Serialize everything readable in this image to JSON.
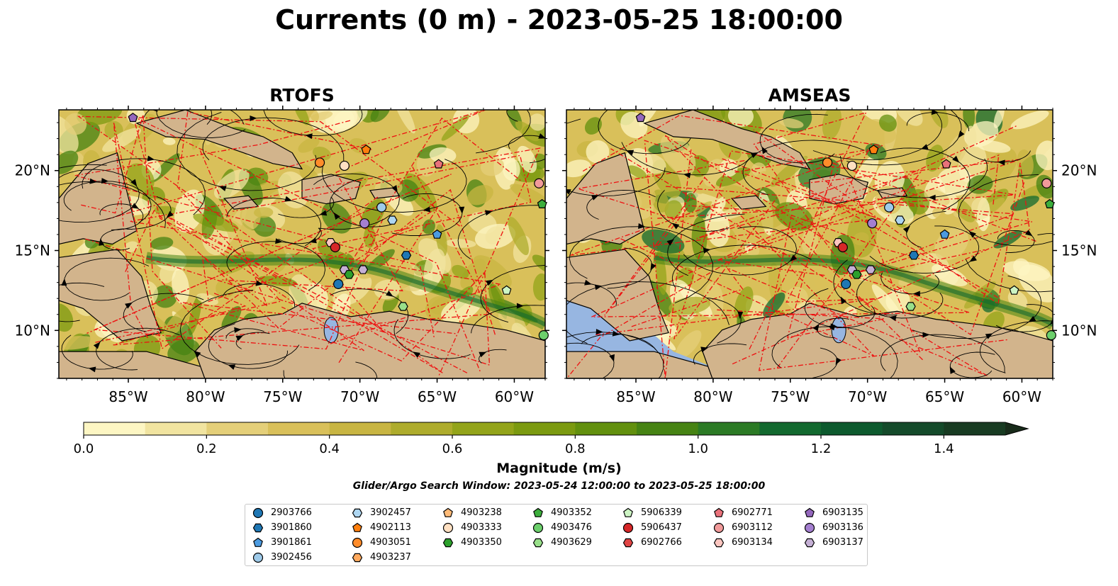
{
  "title": "Currents (0 m) - 2023-05-25 18:00:00",
  "panels": [
    {
      "title": "RTOFS"
    },
    {
      "title": "AMSEAS"
    }
  ],
  "axes": {
    "x_ticks": [
      "85°W",
      "80°W",
      "75°W",
      "70°W",
      "65°W",
      "60°W"
    ],
    "y_ticks": [
      "20°N",
      "15°N",
      "10°N"
    ],
    "x_values": [
      -85,
      -80,
      -75,
      -70,
      -65,
      -60
    ],
    "y_values": [
      20,
      15,
      10
    ],
    "xlim": [
      -89.5,
      -58.0
    ],
    "ylim": [
      7.0,
      23.8
    ]
  },
  "colorbar": {
    "label": "Magnitude (m/s)",
    "ticks": [
      "0.0",
      "0.2",
      "0.4",
      "0.6",
      "0.8",
      "1.0",
      "1.2",
      "1.4"
    ],
    "tick_values": [
      0.0,
      0.2,
      0.4,
      0.6,
      0.8,
      1.0,
      1.2,
      1.4
    ],
    "range": [
      0.0,
      1.5
    ],
    "extend": "max",
    "colors": [
      "#fdf6c3",
      "#f1e4a0",
      "#e4cf79",
      "#d9c05a",
      "#c8b542",
      "#aeac2c",
      "#93a41a",
      "#7b9a10",
      "#62900e",
      "#468313",
      "#2b7a25",
      "#12692f",
      "#0d5a2e",
      "#144a2a",
      "#183b22",
      "#182b1a"
    ]
  },
  "search_window": "Glider/Argo Search Window: 2023-05-24 12:00:00 to 2023-05-25 18:00:00",
  "legend": {
    "entries": [
      {
        "id": "2903766",
        "marker": "circle",
        "color": "#1f77b4"
      },
      {
        "id": "3901860",
        "marker": "hexagon",
        "color": "#1f77b4"
      },
      {
        "id": "3901861",
        "marker": "pentagon",
        "color": "#4c9be0"
      },
      {
        "id": "3902456",
        "marker": "circle",
        "color": "#9ecae9"
      },
      {
        "id": "3902457",
        "marker": "hexagon",
        "color": "#aed6f1"
      },
      {
        "id": "4902113",
        "marker": "pentagon",
        "color": "#ff7f0e"
      },
      {
        "id": "4903051",
        "marker": "circle",
        "color": "#ff8c2a"
      },
      {
        "id": "4903237",
        "marker": "hexagon",
        "color": "#ffa95e"
      },
      {
        "id": "4903238",
        "marker": "pentagon",
        "color": "#ffbb78"
      },
      {
        "id": "4903333",
        "marker": "circle",
        "color": "#ffe0c2"
      },
      {
        "id": "4903350",
        "marker": "hexagon",
        "color": "#2ca02c"
      },
      {
        "id": "4903352",
        "marker": "pentagon",
        "color": "#3cae3c"
      },
      {
        "id": "4903476",
        "marker": "circle",
        "color": "#6ccf6c"
      },
      {
        "id": "4903629",
        "marker": "hexagon",
        "color": "#98df8a"
      },
      {
        "id": "5906339",
        "marker": "pentagon",
        "color": "#cdf5c4"
      },
      {
        "id": "5906437",
        "marker": "circle",
        "color": "#d62728"
      },
      {
        "id": "6902766",
        "marker": "hexagon",
        "color": "#e04444"
      },
      {
        "id": "6902771",
        "marker": "pentagon",
        "color": "#e9717a"
      },
      {
        "id": "6903112",
        "marker": "circle",
        "color": "#f19a9a"
      },
      {
        "id": "6903134",
        "marker": "hexagon",
        "color": "#fcc6c0"
      },
      {
        "id": "6903135",
        "marker": "pentagon",
        "color": "#9467bd"
      },
      {
        "id": "6903136",
        "marker": "circle",
        "color": "#a47fd0"
      },
      {
        "id": "6903137",
        "marker": "hexagon",
        "color": "#c5b0d5"
      }
    ]
  },
  "chart_data": {
    "type": "heatmap",
    "title": "Currents (0 m) - 2023-05-25 18:00:00",
    "subplots": [
      "RTOFS",
      "AMSEAS"
    ],
    "variable": "Magnitude (m/s)",
    "xlim": [
      -89.5,
      -58.0
    ],
    "ylim": [
      7.0,
      23.8
    ],
    "floats": [
      {
        "id": "6903135",
        "lon": -84.7,
        "lat": 23.3
      },
      {
        "id": "4903051",
        "lon": -72.6,
        "lat": 20.5
      },
      {
        "id": "4903333",
        "lon": -71.0,
        "lat": 20.3
      },
      {
        "id": "4902113",
        "lon": -69.6,
        "lat": 21.3
      },
      {
        "id": "6902771",
        "lon": -64.9,
        "lat": 20.4
      },
      {
        "id": "6903112",
        "lon": -58.4,
        "lat": 19.2
      },
      {
        "id": "4903352",
        "lon": -58.2,
        "lat": 17.9
      },
      {
        "id": "3902456",
        "lon": -68.6,
        "lat": 17.7
      },
      {
        "id": "3902457",
        "lon": -67.9,
        "lat": 16.9
      },
      {
        "id": "6903136",
        "lon": -69.7,
        "lat": 16.7
      },
      {
        "id": "3901861",
        "lon": -65.0,
        "lat": 16.0
      },
      {
        "id": "6903134",
        "lon": -71.9,
        "lat": 15.5
      },
      {
        "id": "5906437",
        "lon": -71.6,
        "lat": 15.2
      },
      {
        "id": "3901860",
        "lon": -67.0,
        "lat": 14.7
      },
      {
        "id": "6903137",
        "lon": -71.0,
        "lat": 13.8
      },
      {
        "id": "6903137",
        "lon": -69.8,
        "lat": 13.8
      },
      {
        "id": "4903350",
        "lon": -70.7,
        "lat": 13.5
      },
      {
        "id": "2903766",
        "lon": -71.4,
        "lat": 12.9
      },
      {
        "id": "5906339",
        "lon": -60.5,
        "lat": 12.5
      },
      {
        "id": "4903629",
        "lon": -67.2,
        "lat": 11.5
      },
      {
        "id": "4903476",
        "lon": -58.1,
        "lat": 9.7
      }
    ]
  }
}
